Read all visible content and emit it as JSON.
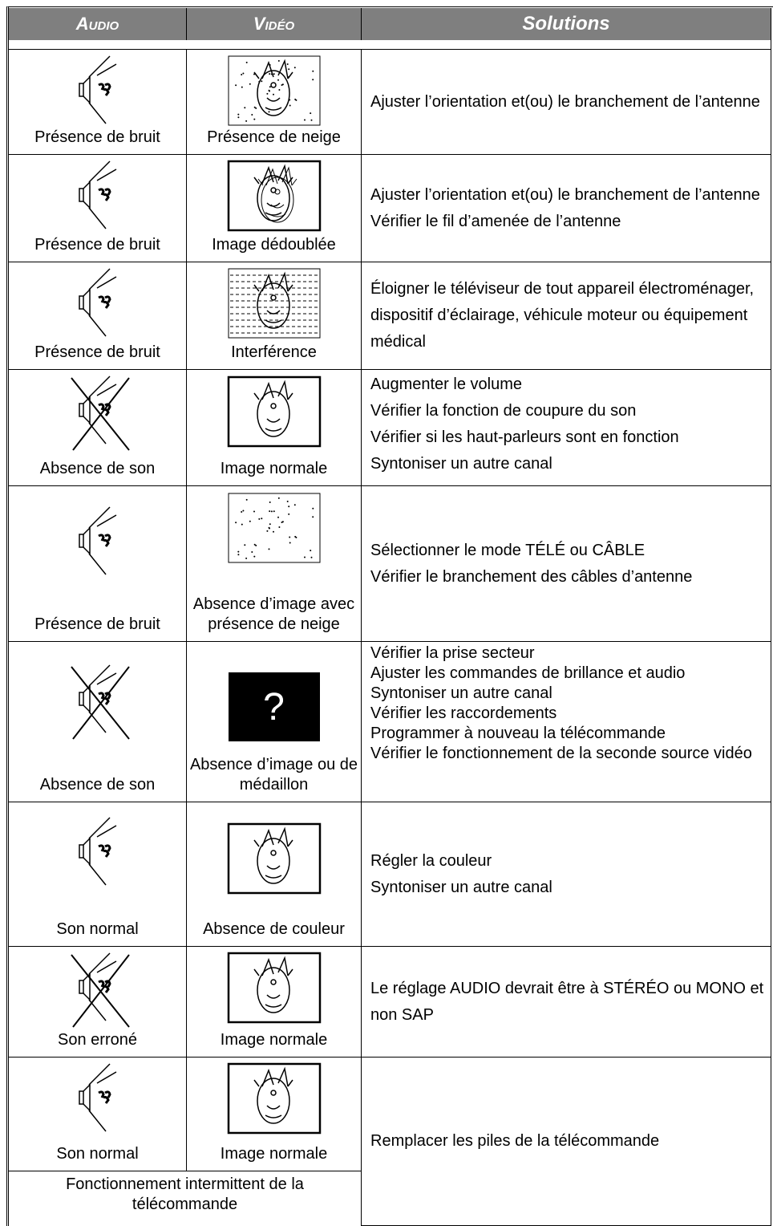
{
  "header": {
    "audio": "Audio",
    "video": "Vidéo",
    "solutions": "Solutions"
  },
  "rows": [
    {
      "audio": "Présence de bruit",
      "video": "Présence de neige",
      "solutions": [
        "Ajuster l’orientation et(ou) le branchement de l’antenne"
      ]
    },
    {
      "audio": "Présence de bruit",
      "video": "Image dédoublée",
      "solutions": [
        "Ajuster l’orientation et(ou) le  branchement de l’antenne",
        "Vérifier le fil d’amenée de l’antenne"
      ]
    },
    {
      "audio": "Présence de bruit",
      "video": "Interférence",
      "solutions": [
        "Éloigner le téléviseur de tout appareil électroménager, dispositif d’éclairage, véhicule moteur ou équipement médical"
      ]
    },
    {
      "audio": "Absence de son",
      "video": "Image normale",
      "solutions": [
        "Augmenter le volume",
        "Vérifier la fonction de coupure du son",
        "Vérifier si les haut-parleurs sont en fonction",
        "Syntoniser un autre canal"
      ]
    },
    {
      "audio": "Présence de bruit",
      "video": "Absence d’image avec présence de neige",
      "solutions": [
        "Sélectionner le mode TÉLÉ ou CÂBLE",
        "Vérifier le branchement des câbles d’antenne"
      ]
    },
    {
      "audio": "Absence de son",
      "video": "Absence d’image ou de médaillon",
      "video_symbol": "?",
      "solutions": [
        "Vérifier la prise secteur",
        "Ajuster les commandes de brillance et audio",
        "Syntoniser un autre canal",
        "Vérifier les raccordements",
        "Programmer à nouveau la télécommande",
        "Vérifier le fonctionnement de la seconde source vidéo"
      ]
    },
    {
      "audio": "Son normal",
      "video": "Absence de couleur",
      "solutions": [
        "Régler  la couleur",
        "Syntoniser un autre canal"
      ]
    },
    {
      "audio": "Son erroné",
      "video": "Image normale",
      "solutions": [
        "Le réglage AUDIO devrait être à STÉRÉO ou MONO et non SAP"
      ]
    },
    {
      "audio": "Son normal",
      "video": "Image normale",
      "solutions": [
        "Remplacer les piles de la télécommande"
      ]
    }
  ],
  "footnote": "Fonctionnement intermittent de la télécommande"
}
